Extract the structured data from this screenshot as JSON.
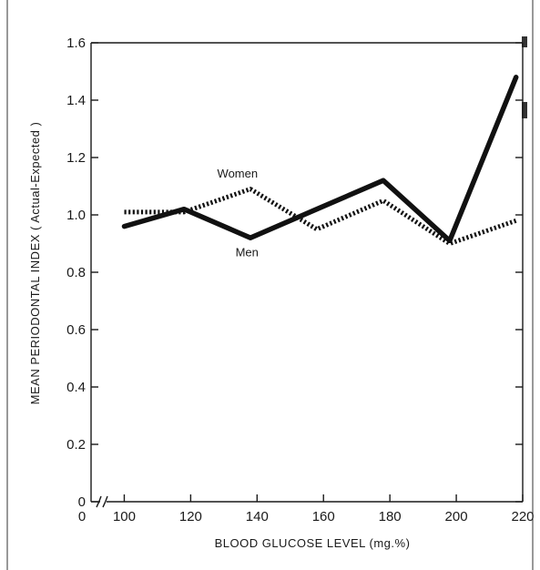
{
  "chart_data": {
    "type": "line",
    "xlabel": "BLOOD GLUCOSE LEVEL (mg.%)",
    "ylabel": "MEAN PERIODONTAL INDEX ( Actual-Expected )",
    "xlim": [
      90,
      220
    ],
    "ylim": [
      0,
      1.6
    ],
    "x_ticks": [
      100,
      120,
      140,
      160,
      180,
      200,
      220
    ],
    "x_tick_labels": [
      "100",
      "120",
      "140",
      "160",
      "180",
      "200",
      "220"
    ],
    "x_origin_label": "0",
    "y_ticks": [
      0,
      0.2,
      0.4,
      0.6,
      0.8,
      1.0,
      1.2,
      1.4,
      1.6
    ],
    "y_tick_labels": [
      "0",
      "0.2",
      "0.4",
      "0.6",
      "0.8",
      "1.0",
      "1.2",
      "1.4",
      "1.6"
    ],
    "axis_break": true,
    "grid": false,
    "series": [
      {
        "name": "Men",
        "style": "solid",
        "color": "#111111",
        "x": [
          100,
          118,
          138,
          158,
          178,
          198,
          218
        ],
        "y": [
          0.96,
          1.02,
          0.92,
          1.02,
          1.12,
          0.91,
          1.48
        ]
      },
      {
        "name": "Women",
        "style": "dotted",
        "color": "#111111",
        "x": [
          100,
          118,
          138,
          158,
          178,
          198,
          218
        ],
        "y": [
          1.01,
          1.01,
          1.09,
          0.95,
          1.05,
          0.9,
          0.98
        ]
      }
    ]
  }
}
